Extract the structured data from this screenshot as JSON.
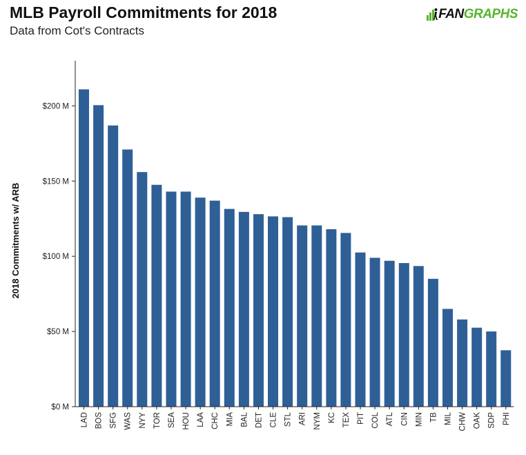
{
  "header": {
    "title": "MLB Payroll Commitments for 2018",
    "subtitle": "Data from Cot's Contracts"
  },
  "logo": {
    "icon": "fangraphs-logo-icon",
    "text_fan": "FAN",
    "text_graphs": "GRAPHS",
    "colors": {
      "fan": "#111111",
      "graphs": "#56b52c"
    }
  },
  "chart_data": {
    "type": "bar",
    "title": "MLB Payroll Commitments for 2018",
    "subtitle": "Data from Cot's Contracts",
    "xlabel": "",
    "ylabel": "2018 Commitments w/ ARB",
    "ylim": [
      0,
      230
    ],
    "yticks": [
      0,
      50,
      100,
      150,
      200
    ],
    "ytick_labels": [
      "$0 M",
      "$50 M",
      "$100 M",
      "$150 M",
      "$200 M"
    ],
    "grid": false,
    "bar_color": "#2f5f97",
    "categories": [
      "LAD",
      "BOS",
      "SFG",
      "WAS",
      "NYY",
      "TOR",
      "SEA",
      "HOU",
      "LAA",
      "CHC",
      "MIA",
      "BAL",
      "DET",
      "CLE",
      "STL",
      "ARI",
      "NYM",
      "KC",
      "TEX",
      "PIT",
      "COL",
      "ATL",
      "CIN",
      "MIN",
      "TB",
      "MIL",
      "CHW",
      "OAK",
      "SDP",
      "PHI"
    ],
    "values": [
      211,
      200.5,
      187,
      171,
      156,
      147.5,
      143,
      143,
      139,
      137,
      131.5,
      129.5,
      128,
      126.5,
      126,
      120.5,
      120.5,
      118,
      115.5,
      102.5,
      99,
      97,
      95.5,
      93.5,
      85,
      65,
      58,
      52.5,
      50,
      37.5
    ]
  }
}
